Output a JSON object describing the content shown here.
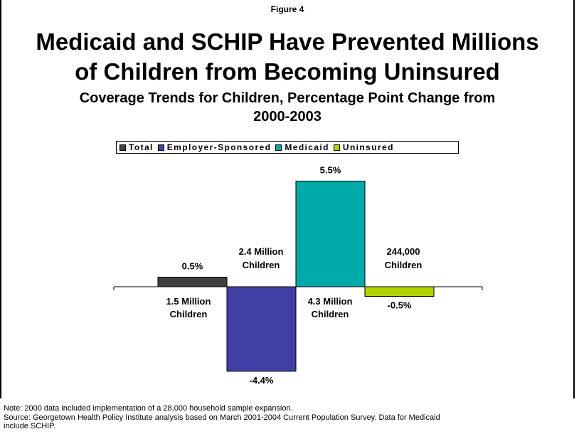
{
  "figure_label": "Figure 4",
  "title_line1": "Medicaid and SCHIP Have Prevented Millions",
  "title_line2": "of Children from Becoming Uninsured",
  "subtitle_line1": "Coverage Trends for Children, Percentage Point Change from",
  "subtitle_line2": "2000-2003",
  "chart_data": {
    "type": "bar",
    "title": "Medicaid and SCHIP Have Prevented Millions of Children from Becoming Uninsured",
    "subtitle": "Coverage Trends for Children, Percentage Point Change from 2000-2003",
    "categories": [
      "Total",
      "Employer-Sponsored",
      "Medicaid",
      "Uninsured"
    ],
    "values": [
      0.5,
      -4.4,
      5.5,
      -0.5
    ],
    "value_labels": [
      "0.5%",
      "-4.4%",
      "5.5%",
      "-0.5%"
    ],
    "colors": [
      "#404040",
      "#3f3fa6",
      "#00aaa8",
      "#b2d300"
    ],
    "ylim": [
      -5,
      6
    ],
    "legend_position": "top",
    "grid": false,
    "annotations": [
      {
        "line1": "1.5 Million",
        "line2": "Children",
        "category": "Total"
      },
      {
        "line1": "2.4 Million",
        "line2": "Children",
        "category": "Employer-Sponsored"
      },
      {
        "line1": "4.3 Million",
        "line2": "Children",
        "category": "Medicaid"
      },
      {
        "line1": "244,000",
        "line2": "Children",
        "category": "Uninsured"
      }
    ]
  },
  "notes": [
    "Note: 2000 data included implementation of a 28,000 household sample expansion.",
    "Source: Georgetown Health Policy Institute analysis based on March 2001-2004 Current Population Survey. Data for Medicaid",
    "include SCHIP."
  ]
}
